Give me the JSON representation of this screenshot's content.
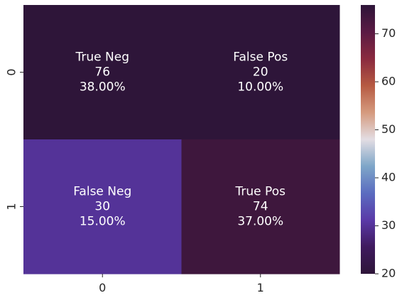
{
  "chart_data": {
    "type": "heatmap",
    "title": "",
    "xlabel": "",
    "ylabel": "",
    "x_categories": [
      "0",
      "1"
    ],
    "y_categories": [
      "0",
      "1"
    ],
    "cells": [
      {
        "row": 0,
        "col": 0,
        "value": 76,
        "name": "True Neg",
        "pct": "38.00%"
      },
      {
        "row": 0,
        "col": 1,
        "value": 20,
        "name": "False Pos",
        "pct": "10.00%"
      },
      {
        "row": 1,
        "col": 0,
        "value": 30,
        "name": "False Neg",
        "pct": "15.00%"
      },
      {
        "row": 1,
        "col": 1,
        "value": 74,
        "name": "True Pos",
        "pct": "37.00%"
      }
    ],
    "colorbar": {
      "colormap": "twilight_shifted",
      "range": [
        20,
        76
      ],
      "ticks": [
        20,
        30,
        40,
        50,
        60,
        70
      ]
    },
    "grid": false,
    "legend": "colorbar-right"
  }
}
